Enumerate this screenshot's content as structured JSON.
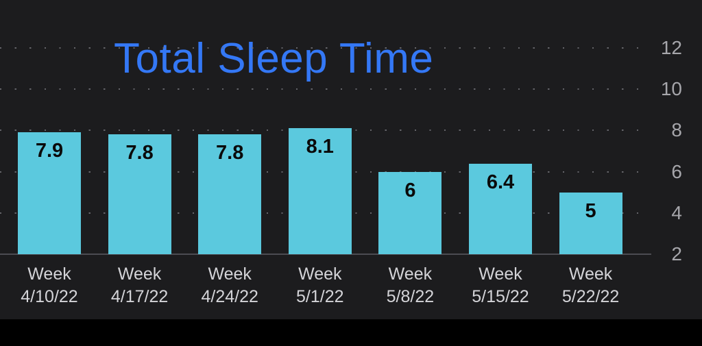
{
  "chart_data": {
    "type": "bar",
    "title": "Total Sleep Time",
    "categories": [
      "Week\n4/10/22",
      "Week\n4/17/22",
      "Week\n4/24/22",
      "Week\n5/1/22",
      "Week\n5/8/22",
      "Week\n5/15/22",
      "Week\n5/22/22"
    ],
    "values": [
      7.9,
      7.8,
      7.8,
      8.1,
      6,
      6.4,
      5
    ],
    "value_labels": [
      "7.9",
      "7.8",
      "7.8",
      "8.1",
      "6",
      "6.4",
      "5"
    ],
    "yticks": [
      12,
      10,
      8,
      6,
      4,
      2
    ],
    "ylim": [
      2,
      12
    ],
    "xlabel": "",
    "ylabel": "",
    "legend": "none",
    "grid": "dotted-horizontal",
    "y_axis_side": "right",
    "bar_color": "#5bc9de",
    "title_color": "#3478f6",
    "value_label_color": "#0a0a0a",
    "category_label_color": "#d4d4d8",
    "tick_label_color": "#a6a6ab",
    "background_color": "#1c1c1e"
  }
}
